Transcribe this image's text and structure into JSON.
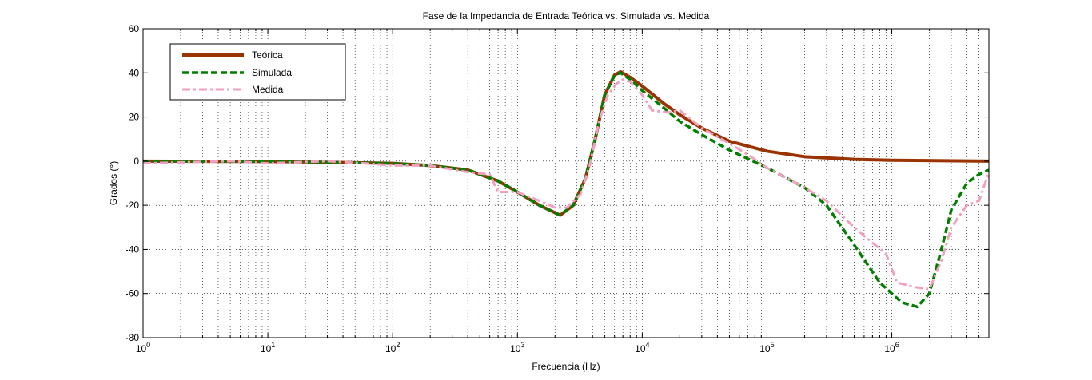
{
  "chart_data": {
    "type": "line",
    "title": "Fase de la Impedancia de Entrada Teórica vs. Simulada vs. Medida",
    "xlabel": "Frecuencia (Hz)",
    "ylabel": "Grados (°)",
    "x_scale": "log",
    "xlim": [
      1,
      6000000
    ],
    "ylim": [
      -80,
      60
    ],
    "grid": true,
    "legend_position": "top-left",
    "y_ticks": [
      {
        "value": -80,
        "label": "-80"
      },
      {
        "value": -60,
        "label": "-60"
      },
      {
        "value": -40,
        "label": "-40"
      },
      {
        "value": -20,
        "label": "-20"
      },
      {
        "value": 0,
        "label": "0"
      },
      {
        "value": 20,
        "label": "20"
      },
      {
        "value": 40,
        "label": "40"
      },
      {
        "value": 60,
        "label": "60"
      }
    ],
    "x_ticks": [
      {
        "value": 1,
        "base": "10",
        "exp": "0"
      },
      {
        "value": 10,
        "base": "10",
        "exp": "1"
      },
      {
        "value": 100,
        "base": "10",
        "exp": "2"
      },
      {
        "value": 1000,
        "base": "10",
        "exp": "3"
      },
      {
        "value": 10000,
        "base": "10",
        "exp": "4"
      },
      {
        "value": 100000,
        "base": "10",
        "exp": "5"
      },
      {
        "value": 1000000,
        "base": "10",
        "exp": "6"
      }
    ],
    "series": [
      {
        "name": "Teórica",
        "color": "#993300",
        "style": "solid",
        "points": [
          [
            1,
            0
          ],
          [
            10,
            -0.2
          ],
          [
            30,
            -0.5
          ],
          [
            100,
            -1
          ],
          [
            200,
            -2
          ],
          [
            400,
            -4
          ],
          [
            700,
            -9
          ],
          [
            1000,
            -14
          ],
          [
            1500,
            -20
          ],
          [
            2200,
            -24.5
          ],
          [
            2800,
            -20
          ],
          [
            3500,
            -8
          ],
          [
            4200,
            10
          ],
          [
            5000,
            30
          ],
          [
            6000,
            39
          ],
          [
            6700,
            40.5
          ],
          [
            8000,
            38
          ],
          [
            10000,
            34
          ],
          [
            15000,
            26
          ],
          [
            20000,
            21
          ],
          [
            30000,
            15
          ],
          [
            50000,
            9
          ],
          [
            100000,
            4.5
          ],
          [
            200000,
            2
          ],
          [
            500000,
            0.8
          ],
          [
            1000000,
            0.4
          ],
          [
            6000000,
            0
          ]
        ]
      },
      {
        "name": "Simulada",
        "color": "#007f00",
        "style": "dashed",
        "points": [
          [
            1,
            0
          ],
          [
            10,
            -0.2
          ],
          [
            30,
            -0.5
          ],
          [
            100,
            -1
          ],
          [
            200,
            -2
          ],
          [
            400,
            -4
          ],
          [
            700,
            -9
          ],
          [
            1000,
            -14
          ],
          [
            1500,
            -20
          ],
          [
            2200,
            -24.5
          ],
          [
            2800,
            -20
          ],
          [
            3500,
            -8
          ],
          [
            4200,
            10
          ],
          [
            5000,
            30
          ],
          [
            6000,
            39
          ],
          [
            6700,
            40
          ],
          [
            8000,
            37
          ],
          [
            10000,
            32
          ],
          [
            15000,
            24
          ],
          [
            20000,
            18
          ],
          [
            30000,
            12
          ],
          [
            50000,
            5
          ],
          [
            100000,
            -3
          ],
          [
            200000,
            -12
          ],
          [
            300000,
            -20
          ],
          [
            500000,
            -38
          ],
          [
            800000,
            -55
          ],
          [
            1200000,
            -64
          ],
          [
            1600000,
            -66
          ],
          [
            2000000,
            -60
          ],
          [
            2500000,
            -40
          ],
          [
            3000000,
            -22
          ],
          [
            4000000,
            -10
          ],
          [
            5000000,
            -6
          ],
          [
            6000000,
            -4
          ]
        ]
      },
      {
        "name": "Medida",
        "color": "#f2a0c0",
        "style": "dashdot",
        "points": [
          [
            1,
            -1
          ],
          [
            5,
            0
          ],
          [
            10,
            -1
          ],
          [
            30,
            0
          ],
          [
            60,
            -1
          ],
          [
            100,
            -2
          ],
          [
            200,
            -2
          ],
          [
            400,
            -5
          ],
          [
            600,
            -6
          ],
          [
            700,
            -14
          ],
          [
            1000,
            -14
          ],
          [
            1500,
            -18
          ],
          [
            2000,
            -21
          ],
          [
            2500,
            -21
          ],
          [
            3200,
            -15
          ],
          [
            3800,
            -2
          ],
          [
            4500,
            18
          ],
          [
            5300,
            30
          ],
          [
            6200,
            35
          ],
          [
            7000,
            37
          ],
          [
            8000,
            36
          ],
          [
            10000,
            30
          ],
          [
            12000,
            23
          ],
          [
            16000,
            22
          ],
          [
            20000,
            23
          ],
          [
            30000,
            15
          ],
          [
            50000,
            8
          ],
          [
            70000,
            3
          ],
          [
            100000,
            -3
          ],
          [
            200000,
            -12
          ],
          [
            300000,
            -18
          ],
          [
            500000,
            -30
          ],
          [
            700000,
            -37
          ],
          [
            900000,
            -42
          ],
          [
            1100000,
            -55
          ],
          [
            1500000,
            -57
          ],
          [
            2000000,
            -58
          ],
          [
            2500000,
            -45
          ],
          [
            3000000,
            -30
          ],
          [
            4000000,
            -20
          ],
          [
            5000000,
            -18
          ],
          [
            6000000,
            -5
          ]
        ]
      }
    ]
  }
}
